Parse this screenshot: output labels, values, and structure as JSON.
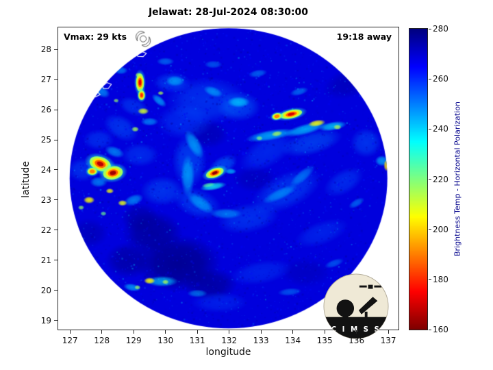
{
  "title": "Jelawat: 28-Jul-2024 08:30:00",
  "annotations": {
    "vmax": "Vmax: 29 kts",
    "eta": "19:18 away"
  },
  "axes": {
    "xlabel": "longitude",
    "ylabel": "latitude",
    "xticks": [
      127,
      128,
      129,
      130,
      131,
      132,
      133,
      134,
      135,
      136,
      137
    ],
    "yticks": [
      19,
      20,
      21,
      22,
      23,
      24,
      25,
      26,
      27,
      28
    ]
  },
  "colorbar": {
    "label": "Brightness Temp - Horizontal Polarization",
    "ticks": [
      160,
      180,
      200,
      220,
      240,
      260,
      280
    ],
    "min": 160,
    "max": 280
  },
  "logo": {
    "letters": "C I M S S"
  },
  "chart_data": {
    "type": "heatmap",
    "title": "Jelawat: 28-Jul-2024 08:30:00",
    "xlabel": "longitude",
    "ylabel": "latitude",
    "xlim": [
      126.63,
      137.32
    ],
    "ylim": [
      18.7,
      28.73
    ],
    "colormap": "jet_reversed_high_values_blue",
    "value_range": [
      160,
      280
    ],
    "feature_format": "lon, lat, rx_deg, ry_deg, angle_deg, brightness_temp_K, alpha",
    "swath": {
      "center_lon": 131.98,
      "center_lat": 23.72,
      "radius_lon_deg": 4.99,
      "radius_lat_deg": 4.98,
      "background_temp_k": 269
    },
    "dark_patches": [
      [
        130.4,
        20.9,
        1.35,
        0.95,
        0,
        279,
        0.85
      ],
      [
        129.6,
        21.9,
        0.95,
        0.75,
        0,
        278,
        0.75
      ],
      [
        131.4,
        20.2,
        0.85,
        0.55,
        0,
        278,
        0.7
      ],
      [
        128.85,
        21.0,
        0.75,
        0.6,
        0,
        277,
        0.7
      ],
      [
        129.2,
        22.4,
        0.6,
        0.5,
        0,
        277,
        0.6
      ],
      [
        131.3,
        25.2,
        0.7,
        0.5,
        0,
        276,
        0.55
      ],
      [
        132.8,
        23.7,
        0.7,
        0.45,
        0,
        275,
        0.5
      ],
      [
        135.8,
        26.9,
        0.9,
        0.5,
        -20,
        276,
        0.5
      ],
      [
        134.4,
        20.6,
        0.8,
        0.5,
        0,
        275,
        0.45
      ],
      [
        127.6,
        21.9,
        0.6,
        0.5,
        0,
        276,
        0.5
      ]
    ],
    "texture_patches": [
      [
        131.3,
        26.3,
        1.3,
        0.8,
        0,
        253,
        0.45
      ],
      [
        130.6,
        25.6,
        0.9,
        0.6,
        0,
        255,
        0.45
      ],
      [
        132.3,
        26.1,
        0.7,
        0.5,
        0,
        251,
        0.5
      ],
      [
        133.2,
        24.6,
        1.0,
        0.5,
        -30,
        254,
        0.4
      ],
      [
        133.8,
        23.3,
        1.2,
        0.6,
        -25,
        252,
        0.45
      ],
      [
        132.6,
        22.4,
        1.0,
        0.5,
        -10,
        253,
        0.45
      ],
      [
        131.0,
        22.9,
        0.8,
        0.5,
        20,
        252,
        0.45
      ],
      [
        130.75,
        24.3,
        0.55,
        0.9,
        0,
        251,
        0.5
      ],
      [
        134.6,
        24.9,
        1.0,
        0.4,
        -15,
        250,
        0.45
      ],
      [
        135.6,
        23.6,
        0.7,
        0.4,
        -30,
        253,
        0.4
      ],
      [
        134.9,
        21.9,
        0.9,
        0.4,
        -20,
        254,
        0.35
      ],
      [
        133.0,
        20.6,
        1.0,
        0.4,
        -10,
        254,
        0.35
      ],
      [
        131.7,
        19.6,
        0.9,
        0.35,
        0,
        255,
        0.35
      ],
      [
        129.9,
        23.3,
        0.7,
        0.5,
        0,
        252,
        0.45
      ],
      [
        129.2,
        24.5,
        0.6,
        0.4,
        0,
        253,
        0.4
      ],
      [
        128.6,
        25.4,
        0.6,
        0.4,
        30,
        252,
        0.45
      ],
      [
        127.9,
        25.0,
        0.5,
        0.35,
        0,
        253,
        0.4
      ],
      [
        136.3,
        24.9,
        0.5,
        0.5,
        0,
        252,
        0.45
      ],
      [
        127.4,
        24.0,
        0.5,
        0.4,
        0,
        252,
        0.4
      ],
      [
        131.8,
        24.15,
        0.5,
        0.3,
        -30,
        249,
        0.5
      ],
      [
        130.2,
        26.9,
        0.6,
        0.35,
        0,
        252,
        0.45
      ],
      [
        129.0,
        26.1,
        0.5,
        0.3,
        20,
        252,
        0.4
      ]
    ],
    "cyan_bands": [
      [
        130.9,
        24.85,
        0.5,
        0.22,
        60,
        243,
        0.7
      ],
      [
        130.7,
        23.8,
        0.22,
        0.7,
        0,
        242,
        0.65
      ],
      [
        131.1,
        22.9,
        0.5,
        0.22,
        35,
        243,
        0.65
      ],
      [
        131.9,
        22.55,
        0.5,
        0.18,
        0,
        244,
        0.6
      ],
      [
        131.5,
        23.45,
        0.42,
        0.13,
        -10,
        233,
        0.8
      ],
      [
        132.05,
        23.95,
        0.18,
        0.1,
        0,
        240,
        0.7
      ],
      [
        133.3,
        25.15,
        0.8,
        0.18,
        -10,
        241,
        0.75
      ],
      [
        134.4,
        25.35,
        0.7,
        0.18,
        -15,
        240,
        0.75
      ],
      [
        135.25,
        25.45,
        0.45,
        0.15,
        -10,
        238,
        0.75
      ],
      [
        133.6,
        23.2,
        0.6,
        0.18,
        -25,
        244,
        0.6
      ],
      [
        134.3,
        23.8,
        0.5,
        0.18,
        -40,
        245,
        0.55
      ],
      [
        132.3,
        26.25,
        0.35,
        0.18,
        0,
        240,
        0.75
      ],
      [
        131.5,
        26.6,
        0.32,
        0.16,
        20,
        243,
        0.65
      ],
      [
        130.3,
        26.95,
        0.3,
        0.18,
        0,
        242,
        0.65
      ],
      [
        129.8,
        26.3,
        0.28,
        0.14,
        40,
        241,
        0.65
      ],
      [
        129.5,
        25.6,
        0.28,
        0.14,
        0,
        243,
        0.6
      ],
      [
        128.4,
        24.6,
        0.32,
        0.18,
        20,
        242,
        0.6
      ],
      [
        127.9,
        23.6,
        0.28,
        0.18,
        0,
        243,
        0.6
      ],
      [
        129.0,
        23.0,
        0.32,
        0.18,
        -20,
        242,
        0.6
      ],
      [
        129.9,
        20.3,
        0.5,
        0.18,
        0,
        240,
        0.7
      ],
      [
        128.95,
        20.1,
        0.28,
        0.13,
        10,
        241,
        0.65
      ],
      [
        131.0,
        19.9,
        0.32,
        0.13,
        0,
        244,
        0.55
      ],
      [
        136.0,
        22.9,
        0.28,
        0.13,
        -30,
        244,
        0.5
      ],
      [
        135.3,
        20.9,
        0.32,
        0.13,
        -20,
        245,
        0.45
      ],
      [
        136.8,
        24.3,
        0.22,
        0.18,
        0,
        240,
        0.65
      ],
      [
        133.9,
        19.95,
        0.38,
        0.13,
        -5,
        245,
        0.45
      ],
      [
        128.0,
        26.6,
        0.28,
        0.18,
        30,
        242,
        0.6
      ],
      [
        128.6,
        27.3,
        0.22,
        0.13,
        0,
        243,
        0.55
      ],
      [
        130.0,
        27.6,
        0.28,
        0.13,
        0,
        244,
        0.5
      ],
      [
        131.5,
        27.5,
        0.28,
        0.13,
        0,
        245,
        0.45
      ],
      [
        127.1,
        25.6,
        0.22,
        0.13,
        0,
        243,
        0.55
      ],
      [
        132.9,
        27.2,
        0.3,
        0.13,
        -10,
        244,
        0.5
      ],
      [
        134.2,
        26.6,
        0.3,
        0.13,
        -15,
        243,
        0.5
      ]
    ],
    "warm_spots": [
      [
        129.3,
        25.95,
        0.18,
        0.11,
        0,
        210,
        0.9
      ],
      [
        129.05,
        25.35,
        0.12,
        0.09,
        0,
        215,
        0.85
      ],
      [
        127.6,
        23.0,
        0.18,
        0.12,
        0,
        205,
        0.9
      ],
      [
        127.35,
        22.75,
        0.1,
        0.08,
        0,
        218,
        0.8
      ],
      [
        128.65,
        22.9,
        0.15,
        0.1,
        0,
        208,
        0.9
      ],
      [
        128.25,
        23.3,
        0.13,
        0.09,
        0,
        206,
        0.85
      ],
      [
        128.05,
        22.55,
        0.1,
        0.08,
        0,
        222,
        0.75
      ],
      [
        134.75,
        25.55,
        0.28,
        0.11,
        -10,
        206,
        0.9
      ],
      [
        135.4,
        25.42,
        0.13,
        0.09,
        0,
        214,
        0.8
      ],
      [
        136.95,
        24.15,
        0.1,
        0.2,
        0,
        202,
        0.9
      ],
      [
        129.5,
        20.32,
        0.18,
        0.11,
        0,
        205,
        0.9
      ],
      [
        130.0,
        20.28,
        0.11,
        0.08,
        0,
        214,
        0.8
      ],
      [
        129.12,
        20.1,
        0.1,
        0.08,
        0,
        217,
        0.8
      ],
      [
        133.5,
        25.2,
        0.18,
        0.09,
        -10,
        214,
        0.8
      ],
      [
        132.95,
        25.05,
        0.11,
        0.08,
        0,
        220,
        0.75
      ],
      [
        129.85,
        26.55,
        0.1,
        0.07,
        0,
        214,
        0.8
      ],
      [
        128.45,
        26.3,
        0.09,
        0.07,
        0,
        217,
        0.75
      ],
      [
        129.15,
        27.15,
        0.1,
        0.08,
        0,
        206,
        0.85
      ],
      [
        131.35,
        23.5,
        0.22,
        0.08,
        -10,
        224,
        0.7
      ]
    ],
    "hot_cores": [
      [
        127.95,
        24.2,
        0.3,
        0.2,
        20,
        167
      ],
      [
        128.35,
        23.9,
        0.27,
        0.19,
        -10,
        164
      ],
      [
        127.7,
        23.95,
        0.13,
        0.1,
        0,
        190
      ],
      [
        129.2,
        26.9,
        0.11,
        0.26,
        0,
        172
      ],
      [
        129.25,
        26.48,
        0.09,
        0.14,
        0,
        180
      ],
      [
        131.55,
        23.9,
        0.25,
        0.13,
        -20,
        162
      ],
      [
        133.95,
        25.85,
        0.3,
        0.12,
        -12,
        170
      ],
      [
        133.5,
        25.78,
        0.13,
        0.09,
        -12,
        190
      ]
    ],
    "coastlines": [
      [
        [
          127.52,
          26.55
        ],
        [
          127.68,
          26.66
        ],
        [
          127.85,
          26.6
        ],
        [
          127.95,
          26.5
        ],
        [
          127.8,
          26.42
        ],
        [
          127.62,
          26.44
        ],
        [
          127.52,
          26.55
        ]
      ],
      [
        [
          128.02,
          26.78
        ],
        [
          128.16,
          26.9
        ],
        [
          128.3,
          26.84
        ],
        [
          128.2,
          26.7
        ],
        [
          128.05,
          26.7
        ],
        [
          128.02,
          26.78
        ]
      ],
      [
        [
          127.35,
          26.18
        ],
        [
          127.48,
          26.25
        ],
        [
          127.56,
          26.18
        ],
        [
          127.45,
          26.1
        ],
        [
          127.35,
          26.18
        ]
      ],
      [
        [
          129.1,
          27.82
        ],
        [
          129.25,
          27.93
        ],
        [
          129.4,
          27.87
        ],
        [
          129.3,
          27.76
        ],
        [
          129.13,
          27.77
        ],
        [
          129.1,
          27.82
        ]
      ]
    ],
    "storm_symbol": {
      "lon": 129.3,
      "lat": 28.35
    }
  }
}
